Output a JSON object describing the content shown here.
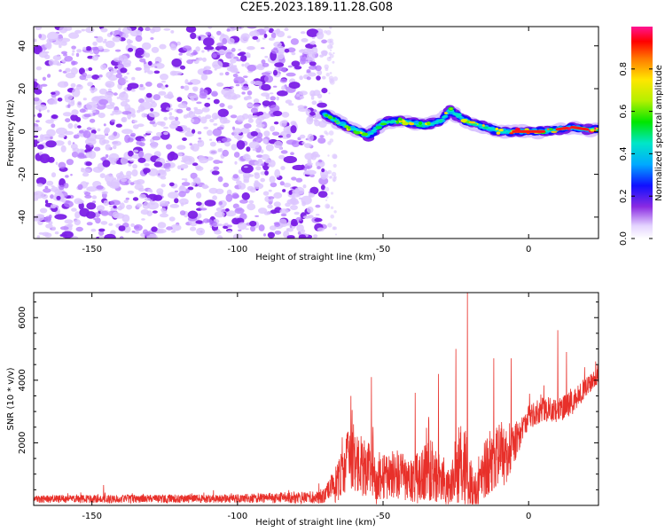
{
  "title": "C2E5.2023.189.11.28.G08",
  "chart_data": [
    {
      "type": "heatmap",
      "xlabel": "Height of straight line (km)",
      "ylabel": "Frequency (Hz)",
      "xlim": [
        -170,
        24
      ],
      "ylim": [
        -50,
        49
      ],
      "x_ticks": [
        -150,
        -100,
        -50,
        0
      ],
      "y_ticks": [
        -40,
        -20,
        0,
        20,
        40
      ],
      "colorbar": {
        "label": "Normalized spectral amplitude",
        "range": [
          0,
          1
        ],
        "ticks": [
          0.0,
          0.2,
          0.4,
          0.6,
          0.8
        ]
      },
      "noise_region_x": [
        -170,
        -70
      ],
      "signal_ridge": {
        "x": [
          -70,
          -62,
          -55,
          -50,
          -45,
          -40,
          -35,
          -30,
          -27,
          -24,
          -20,
          -15,
          -10,
          -5,
          0,
          5,
          10,
          15,
          20,
          24
        ],
        "freq": [
          8,
          2,
          -2,
          4,
          5,
          4,
          3,
          5,
          10,
          7,
          4,
          2,
          0,
          0,
          0,
          0,
          1,
          2,
          1,
          1
        ]
      }
    },
    {
      "type": "line",
      "xlabel": "Height of straight line (km)",
      "ylabel": "SNR (10 * v/v)",
      "xlim": [
        -170,
        24
      ],
      "ylim": [
        0,
        6800
      ],
      "x_ticks": [
        -150,
        -100,
        -50,
        0
      ],
      "y_ticks": [
        2000,
        4000,
        6000
      ],
      "color": "#e8302a",
      "envelope": {
        "x": [
          -170,
          -100,
          -75,
          -70,
          -65,
          -62,
          -58,
          -55,
          -52,
          -50,
          -45,
          -40,
          -35,
          -30,
          -27,
          -25,
          -22,
          -20,
          -18,
          -15,
          -12,
          -10,
          -8,
          -6,
          -3,
          0,
          5,
          10,
          15,
          20,
          24
        ],
        "base": [
          200,
          220,
          260,
          300,
          800,
          1500,
          1300,
          1100,
          800,
          900,
          1000,
          700,
          1200,
          900,
          400,
          1300,
          1200,
          600,
          400,
          1200,
          1400,
          1700,
          1500,
          1800,
          2300,
          2800,
          3100,
          3000,
          3300,
          3800,
          4100
        ],
        "spread": [
          120,
          140,
          200,
          250,
          700,
          900,
          1000,
          900,
          800,
          700,
          800,
          700,
          1100,
          800,
          600,
          1200,
          1500,
          900,
          700,
          1000,
          1000,
          900,
          900,
          700,
          500,
          400,
          400,
          400,
          400,
          300,
          300
        ]
      },
      "peaks": [
        {
          "x": -146,
          "y": 650
        },
        {
          "x": -72,
          "y": 700
        },
        {
          "x": -61,
          "y": 3500
        },
        {
          "x": -54,
          "y": 4100
        },
        {
          "x": -39,
          "y": 3600
        },
        {
          "x": -31,
          "y": 4200
        },
        {
          "x": -25,
          "y": 5000
        },
        {
          "x": -21,
          "y": 6800
        },
        {
          "x": -12,
          "y": 4700
        },
        {
          "x": -6,
          "y": 4700
        },
        {
          "x": 10,
          "y": 5600
        },
        {
          "x": 13,
          "y": 4900
        },
        {
          "x": 23,
          "y": 4600
        }
      ]
    }
  ]
}
